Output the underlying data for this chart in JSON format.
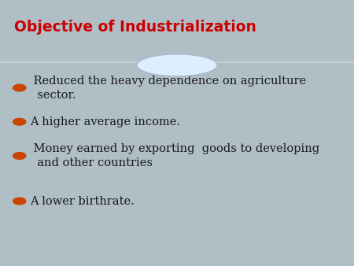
{
  "title": "Objective of Industrialization",
  "title_color": "#CC0000",
  "title_fontsize": 13.5,
  "header_bg": "#FFFFFF",
  "body_bg": "#B0BEC5",
  "footer_bg": "#9EAFB8",
  "divider_color": "#C8D0D5",
  "bullet_color": "#CC4400",
  "bullet_text_color": "#1a1a1a",
  "bullet_fontsize": 10.5,
  "bullets": [
    " Reduced the heavy dependence on agriculture\n  sector.",
    "A higher average income.",
    " Money earned by exporting  goods to developing\n  and other countries",
    "A lower birthrate."
  ],
  "circle_fill": "#DDEEFF",
  "circle_edge": "#AABBCC",
  "fig_width": 4.5,
  "fig_height": 3.38,
  "dpi": 100
}
